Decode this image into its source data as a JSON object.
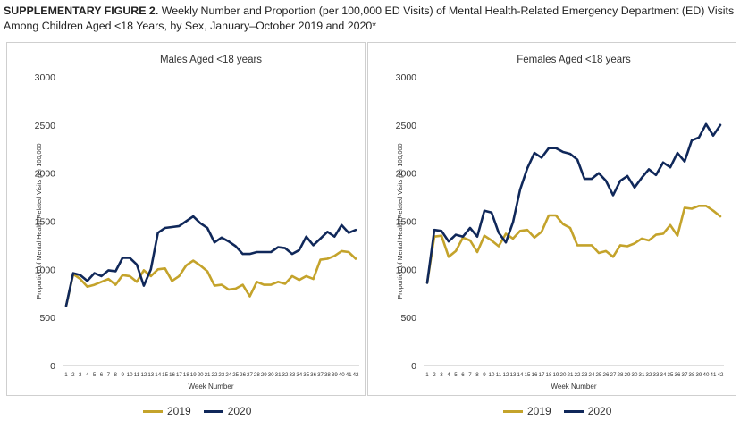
{
  "caption": {
    "label": "SUPPLEMENTARY FIGURE 2.",
    "text": "Weekly Number and Proportion (per 100,000 ED Visits) of Mental Health-Related Emergency Department (ED) Visits Among Children Aged <18 Years, by Sex, January–October 2019 and 2020*"
  },
  "colors": {
    "2019": "#c4a32b",
    "2020": "#10285a"
  },
  "chart_data": [
    {
      "type": "line",
      "title": "Males Aged <18 years",
      "xlabel": "Week Number",
      "ylabel": "Proportion of  Mental Health-Related Visits per  100,000",
      "ylim": [
        0,
        3000
      ],
      "yticks": [
        0,
        500,
        1000,
        1500,
        2000,
        2500,
        3000
      ],
      "grid": false,
      "legend": "bottom",
      "x": [
        1,
        2,
        3,
        4,
        5,
        6,
        7,
        8,
        9,
        10,
        11,
        12,
        13,
        14,
        15,
        16,
        17,
        18,
        19,
        20,
        21,
        22,
        23,
        24,
        25,
        26,
        27,
        28,
        29,
        30,
        31,
        32,
        33,
        34,
        35,
        36,
        37,
        38,
        39,
        40,
        41,
        42
      ],
      "series": [
        {
          "name": "2019",
          "values": [
            620,
            950,
            900,
            820,
            840,
            870,
            900,
            840,
            940,
            930,
            870,
            990,
            930,
            1000,
            1010,
            880,
            930,
            1040,
            1090,
            1040,
            980,
            830,
            840,
            790,
            800,
            840,
            720,
            870,
            840,
            840,
            870,
            850,
            930,
            890,
            930,
            900,
            1100,
            1110,
            1140,
            1190,
            1180,
            1110
          ]
        },
        {
          "name": "2020",
          "values": [
            620,
            960,
            940,
            880,
            960,
            930,
            990,
            980,
            1120,
            1120,
            1050,
            830,
            1000,
            1380,
            1430,
            1440,
            1450,
            1500,
            1550,
            1480,
            1430,
            1280,
            1330,
            1290,
            1240,
            1160,
            1160,
            1180,
            1180,
            1180,
            1230,
            1220,
            1160,
            1200,
            1340,
            1250,
            1320,
            1390,
            1340,
            1460,
            1380,
            1410
          ]
        }
      ]
    },
    {
      "type": "line",
      "title": "Females Aged <18 years",
      "xlabel": "Week Number",
      "ylabel": "Proportion of Mental Health-Related Visits per 100,000",
      "ylim": [
        0,
        3000
      ],
      "yticks": [
        0,
        500,
        1000,
        1500,
        2000,
        2500,
        3000
      ],
      "grid": false,
      "legend": "bottom",
      "x": [
        1,
        2,
        3,
        4,
        5,
        6,
        7,
        8,
        9,
        10,
        11,
        12,
        13,
        14,
        15,
        16,
        17,
        18,
        19,
        20,
        21,
        22,
        23,
        24,
        25,
        26,
        27,
        28,
        29,
        30,
        31,
        32,
        33,
        34,
        35,
        36,
        37,
        38,
        39,
        40,
        41,
        42
      ],
      "series": [
        {
          "name": "2019",
          "values": [
            860,
            1340,
            1350,
            1130,
            1190,
            1330,
            1300,
            1180,
            1350,
            1300,
            1240,
            1370,
            1320,
            1400,
            1410,
            1330,
            1390,
            1560,
            1560,
            1470,
            1430,
            1250,
            1250,
            1250,
            1170,
            1190,
            1130,
            1250,
            1240,
            1270,
            1320,
            1300,
            1360,
            1370,
            1460,
            1350,
            1640,
            1630,
            1660,
            1660,
            1610,
            1550
          ]
        },
        {
          "name": "2020",
          "values": [
            860,
            1410,
            1400,
            1290,
            1360,
            1340,
            1430,
            1340,
            1610,
            1590,
            1380,
            1280,
            1490,
            1830,
            2050,
            2210,
            2160,
            2260,
            2260,
            2220,
            2200,
            2140,
            1940,
            1940,
            2000,
            1920,
            1770,
            1920,
            1970,
            1850,
            1950,
            2040,
            1980,
            2110,
            2060,
            2210,
            2120,
            2340,
            2370,
            2510,
            2390,
            2500
          ]
        }
      ]
    }
  ]
}
